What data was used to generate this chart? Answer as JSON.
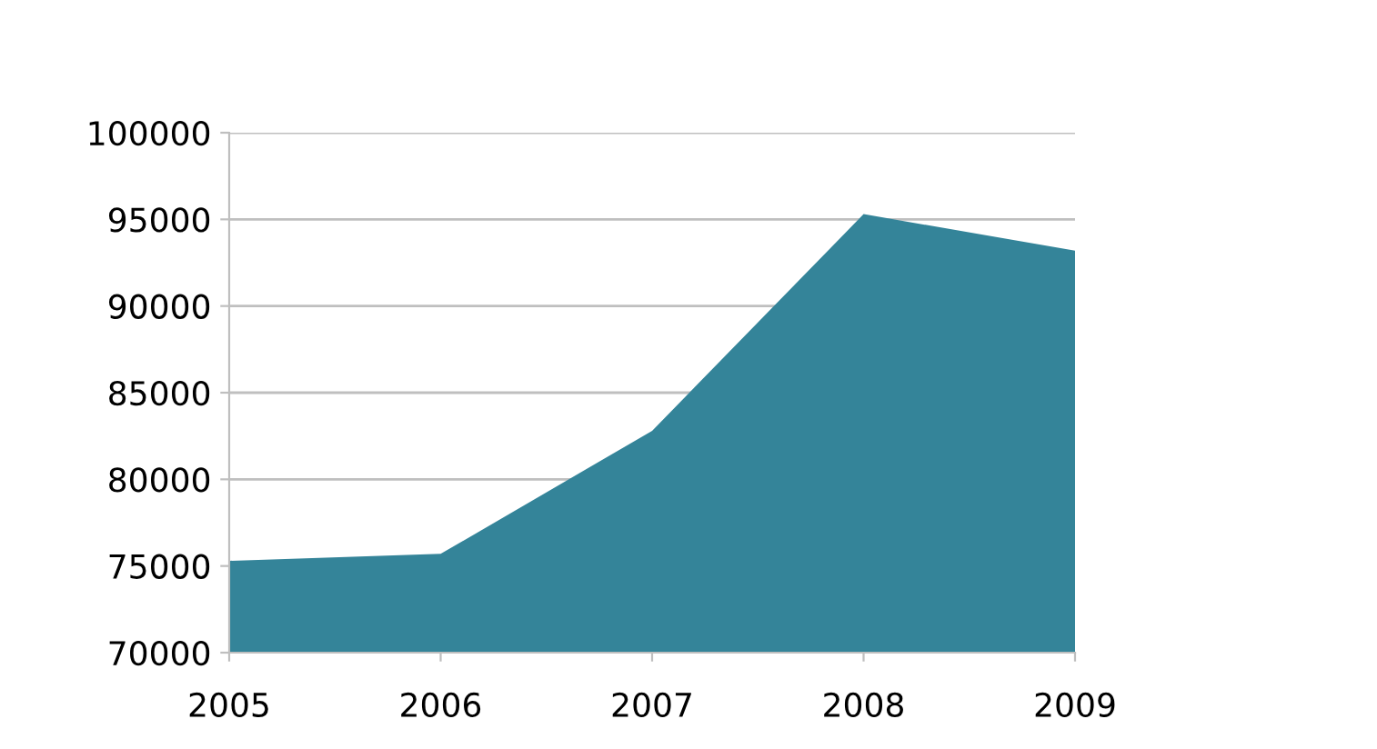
{
  "chart_data": {
    "type": "area",
    "categories": [
      "2005",
      "2006",
      "2007",
      "2008",
      "2009"
    ],
    "series": [
      {
        "color": "#348499",
        "values": [
          75300,
          75700,
          82800,
          95300,
          93200
        ]
      }
    ],
    "ylim": [
      70000,
      100000
    ],
    "yticks": [
      70000,
      75000,
      80000,
      85000,
      90000,
      95000,
      100000
    ],
    "grid": "y"
  }
}
